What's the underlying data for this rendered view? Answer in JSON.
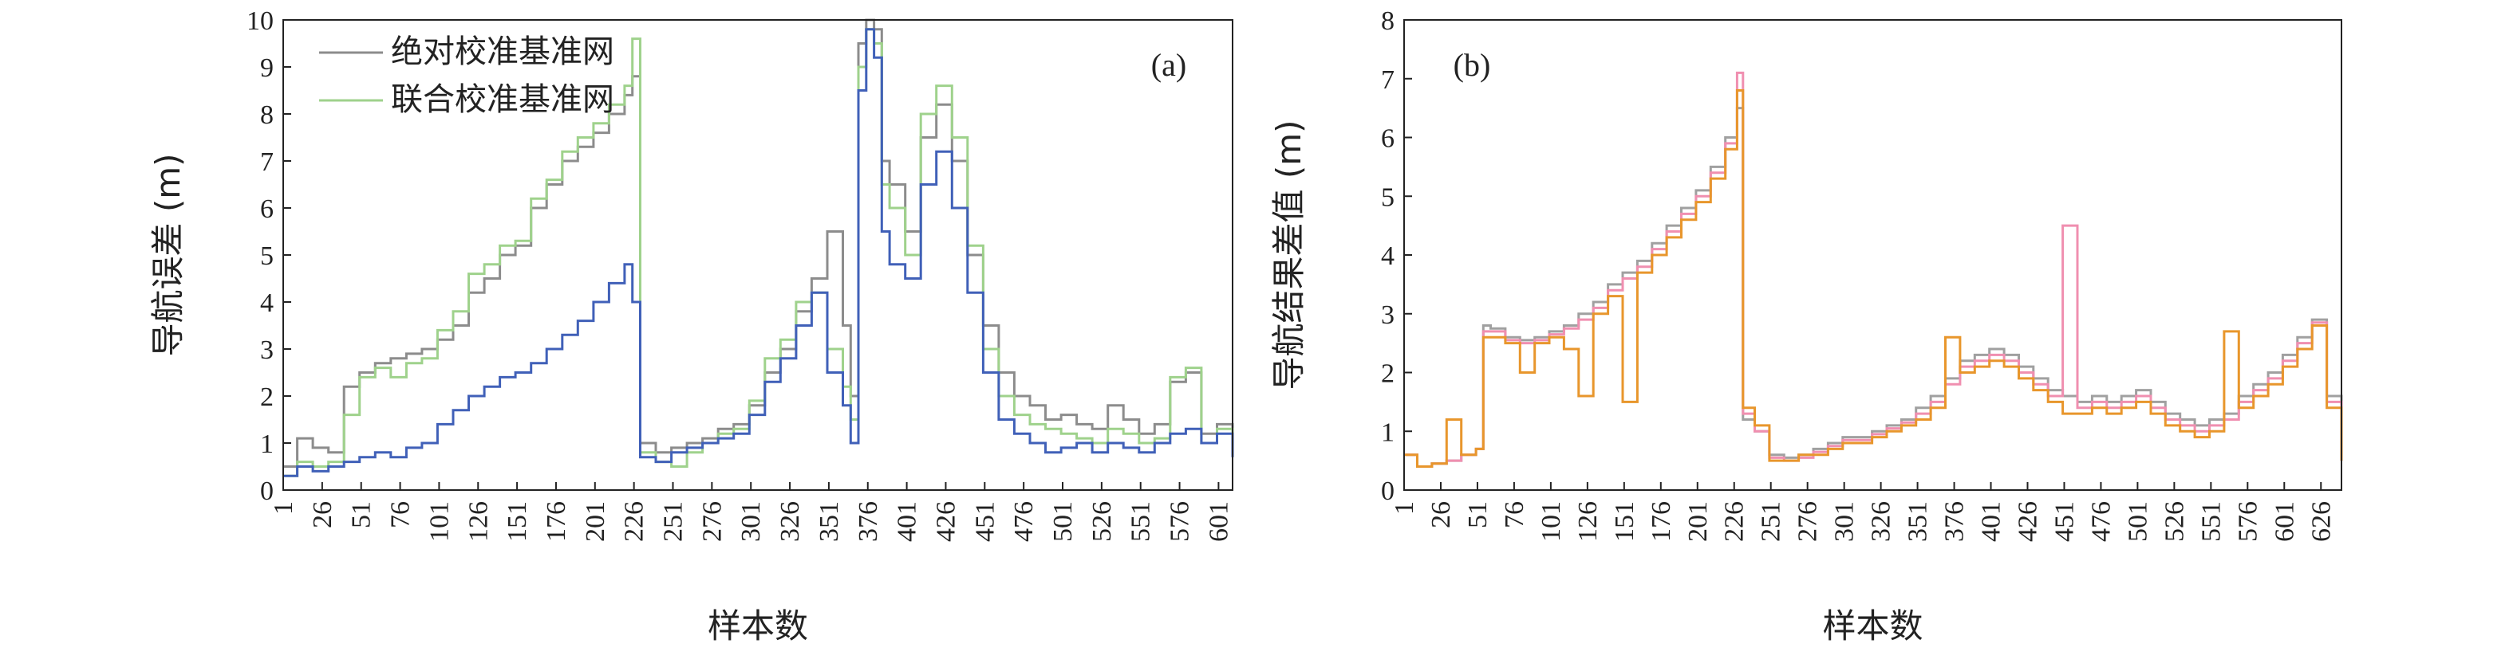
{
  "chart_data": [
    {
      "type": "line",
      "panel_label": "(a)",
      "xlabel": "样本数",
      "ylabel": "导航误差 (m)",
      "ylim": [
        0,
        10
      ],
      "xlim": [
        1,
        610
      ],
      "x_ticks": [
        1,
        26,
        51,
        76,
        101,
        126,
        151,
        176,
        201,
        226,
        251,
        276,
        301,
        326,
        351,
        376,
        401,
        426,
        451,
        476,
        501,
        526,
        551,
        576,
        601
      ],
      "y_ticks": [
        0,
        1,
        2,
        3,
        4,
        5,
        6,
        7,
        8,
        9,
        10
      ],
      "legend": [
        "绝对校准基准网",
        "联合校准基准网"
      ],
      "legend_position": "top-left",
      "series": [
        {
          "name": "绝对校准基准网",
          "color": "#8c8c8c",
          "x": [
            1,
            10,
            20,
            30,
            40,
            50,
            60,
            70,
            80,
            90,
            100,
            110,
            120,
            130,
            140,
            150,
            160,
            170,
            180,
            190,
            200,
            210,
            220,
            225,
            230,
            240,
            250,
            260,
            270,
            280,
            290,
            300,
            310,
            320,
            330,
            340,
            350,
            360,
            365,
            370,
            375,
            380,
            385,
            390,
            400,
            410,
            420,
            430,
            440,
            450,
            460,
            470,
            480,
            490,
            500,
            510,
            520,
            530,
            540,
            550,
            560,
            570,
            580,
            590,
            600,
            610
          ],
          "y": [
            0.5,
            1.1,
            0.9,
            0.8,
            2.2,
            2.5,
            2.7,
            2.8,
            2.9,
            3.0,
            3.2,
            3.5,
            4.2,
            4.5,
            5.0,
            5.2,
            6.0,
            6.5,
            7.0,
            7.3,
            7.6,
            8.0,
            8.4,
            8.8,
            1.0,
            0.8,
            0.9,
            1.0,
            1.1,
            1.3,
            1.4,
            1.8,
            2.5,
            3.0,
            3.8,
            4.5,
            5.5,
            3.5,
            2.0,
            9.5,
            10.0,
            9.8,
            7.0,
            6.5,
            5.5,
            7.5,
            8.2,
            7.0,
            5.0,
            3.5,
            2.5,
            2.0,
            1.8,
            1.5,
            1.6,
            1.4,
            1.3,
            1.8,
            1.5,
            1.2,
            1.4,
            2.3,
            2.5,
            1.2,
            1.4,
            1.0
          ]
        },
        {
          "name": "联合校准基准网",
          "color": "#9fd28c",
          "x": [
            1,
            10,
            20,
            30,
            40,
            50,
            60,
            70,
            80,
            90,
            100,
            110,
            120,
            130,
            140,
            150,
            160,
            170,
            180,
            190,
            200,
            210,
            220,
            225,
            230,
            240,
            250,
            260,
            270,
            280,
            290,
            300,
            310,
            320,
            330,
            340,
            350,
            360,
            365,
            370,
            375,
            380,
            385,
            390,
            400,
            410,
            420,
            430,
            440,
            450,
            460,
            470,
            480,
            490,
            500,
            510,
            520,
            530,
            540,
            550,
            560,
            570,
            580,
            590,
            600,
            610
          ],
          "y": [
            0.3,
            0.6,
            0.5,
            0.6,
            1.6,
            2.4,
            2.6,
            2.4,
            2.7,
            2.8,
            3.4,
            3.8,
            4.6,
            4.8,
            5.2,
            5.3,
            6.2,
            6.6,
            7.2,
            7.5,
            7.8,
            8.2,
            8.6,
            9.6,
            0.8,
            0.6,
            0.5,
            0.8,
            1.0,
            1.2,
            1.3,
            1.9,
            2.8,
            3.2,
            4.0,
            4.2,
            3.0,
            2.2,
            1.5,
            9.0,
            9.8,
            9.5,
            6.5,
            6.0,
            5.0,
            8.0,
            8.6,
            7.5,
            5.2,
            3.0,
            2.0,
            1.6,
            1.4,
            1.3,
            1.2,
            1.1,
            1.0,
            1.3,
            1.2,
            1.0,
            1.1,
            2.4,
            2.6,
            1.0,
            1.3,
            0.8
          ]
        },
        {
          "name": "",
          "color": "#4060b8",
          "x": [
            1,
            10,
            20,
            30,
            40,
            50,
            60,
            70,
            80,
            90,
            100,
            110,
            120,
            130,
            140,
            150,
            160,
            170,
            180,
            190,
            200,
            210,
            220,
            225,
            230,
            240,
            250,
            260,
            270,
            280,
            290,
            300,
            310,
            320,
            330,
            340,
            350,
            360,
            365,
            370,
            375,
            380,
            385,
            390,
            400,
            410,
            420,
            430,
            440,
            450,
            460,
            470,
            480,
            490,
            500,
            510,
            520,
            530,
            540,
            550,
            560,
            570,
            580,
            590,
            600,
            610
          ],
          "y": [
            0.3,
            0.5,
            0.4,
            0.5,
            0.6,
            0.7,
            0.8,
            0.7,
            0.9,
            1.0,
            1.4,
            1.7,
            2.0,
            2.2,
            2.4,
            2.5,
            2.7,
            3.0,
            3.3,
            3.6,
            4.0,
            4.4,
            4.8,
            4.0,
            0.7,
            0.6,
            0.8,
            0.9,
            1.0,
            1.1,
            1.2,
            1.6,
            2.3,
            2.8,
            3.5,
            4.2,
            2.5,
            1.8,
            1.0,
            8.5,
            9.8,
            9.2,
            5.5,
            4.8,
            4.5,
            6.5,
            7.2,
            6.0,
            4.2,
            2.5,
            1.5,
            1.2,
            1.0,
            0.8,
            0.9,
            1.0,
            0.8,
            1.0,
            0.9,
            0.8,
            1.0,
            1.2,
            1.3,
            1.0,
            1.2,
            0.7
          ]
        }
      ]
    },
    {
      "type": "line",
      "panel_label": "(b)",
      "xlabel": "样本数",
      "ylabel": "导航结果差值 (m)",
      "ylim": [
        0,
        8
      ],
      "xlim": [
        1,
        640
      ],
      "x_ticks": [
        1,
        26,
        51,
        76,
        101,
        126,
        151,
        176,
        201,
        226,
        251,
        276,
        301,
        326,
        351,
        376,
        401,
        426,
        451,
        476,
        501,
        526,
        551,
        576,
        601,
        626
      ],
      "y_ticks": [
        0,
        1,
        2,
        3,
        4,
        5,
        6,
        7,
        8
      ],
      "series": [
        {
          "name": "",
          "color": "#a0a0a0",
          "x": [
            1,
            10,
            20,
            30,
            40,
            50,
            55,
            60,
            70,
            80,
            90,
            100,
            110,
            120,
            130,
            140,
            150,
            160,
            170,
            180,
            190,
            200,
            210,
            220,
            228,
            232,
            240,
            250,
            260,
            270,
            280,
            290,
            300,
            310,
            320,
            330,
            340,
            350,
            360,
            370,
            380,
            390,
            400,
            410,
            420,
            430,
            440,
            450,
            460,
            470,
            480,
            490,
            500,
            510,
            520,
            530,
            540,
            550,
            560,
            570,
            580,
            590,
            600,
            610,
            620,
            630,
            640
          ],
          "y": [
            0.6,
            0.4,
            0.45,
            0.5,
            0.6,
            0.7,
            2.8,
            2.75,
            2.6,
            2.55,
            2.6,
            2.7,
            2.8,
            3.0,
            3.2,
            3.5,
            3.7,
            3.9,
            4.2,
            4.5,
            4.8,
            5.1,
            5.5,
            6.0,
            6.5,
            1.2,
            1.0,
            0.6,
            0.55,
            0.6,
            0.7,
            0.8,
            0.9,
            0.9,
            1.0,
            1.1,
            1.2,
            1.4,
            1.6,
            1.9,
            2.2,
            2.3,
            2.4,
            2.3,
            2.1,
            1.9,
            1.7,
            1.6,
            1.5,
            1.6,
            1.5,
            1.6,
            1.7,
            1.5,
            1.3,
            1.2,
            1.1,
            1.2,
            1.3,
            1.6,
            1.8,
            2.0,
            2.3,
            2.6,
            2.9,
            1.6,
            0.5
          ]
        },
        {
          "name": "",
          "color": "#f08fb0",
          "x": [
            1,
            10,
            20,
            30,
            40,
            50,
            55,
            60,
            70,
            80,
            90,
            100,
            110,
            120,
            130,
            140,
            150,
            160,
            170,
            180,
            190,
            200,
            210,
            220,
            228,
            232,
            240,
            250,
            260,
            270,
            280,
            290,
            300,
            310,
            320,
            330,
            340,
            350,
            360,
            370,
            380,
            390,
            400,
            410,
            420,
            430,
            440,
            450,
            460,
            470,
            480,
            490,
            500,
            510,
            520,
            530,
            540,
            550,
            560,
            570,
            580,
            590,
            600,
            610,
            620,
            630,
            640
          ],
          "y": [
            0.6,
            0.4,
            0.45,
            0.5,
            0.6,
            0.7,
            2.7,
            2.7,
            2.55,
            2.5,
            2.55,
            2.65,
            2.75,
            2.9,
            3.1,
            3.4,
            3.6,
            3.8,
            4.1,
            4.4,
            4.7,
            5.0,
            5.4,
            5.9,
            7.1,
            1.3,
            1.0,
            0.55,
            0.5,
            0.55,
            0.65,
            0.75,
            0.85,
            0.85,
            0.95,
            1.05,
            1.15,
            1.3,
            1.5,
            1.8,
            2.1,
            2.2,
            2.3,
            2.2,
            2.0,
            1.8,
            1.6,
            4.5,
            1.4,
            1.5,
            1.4,
            1.5,
            1.6,
            1.4,
            1.2,
            1.1,
            1.0,
            1.1,
            1.2,
            1.5,
            1.7,
            1.9,
            2.2,
            2.5,
            2.85,
            1.5,
            0.5
          ]
        },
        {
          "name": "",
          "color": "#e8962c",
          "x": [
            1,
            10,
            20,
            30,
            40,
            50,
            55,
            60,
            70,
            80,
            90,
            100,
            110,
            120,
            130,
            140,
            150,
            160,
            170,
            180,
            190,
            200,
            210,
            220,
            228,
            232,
            240,
            250,
            260,
            270,
            280,
            290,
            300,
            310,
            320,
            330,
            340,
            350,
            360,
            370,
            380,
            390,
            400,
            410,
            420,
            430,
            440,
            450,
            460,
            470,
            480,
            490,
            500,
            510,
            520,
            530,
            540,
            550,
            560,
            570,
            580,
            590,
            600,
            610,
            620,
            630,
            640
          ],
          "y": [
            0.6,
            0.4,
            0.45,
            1.2,
            0.6,
            0.7,
            2.6,
            2.6,
            2.5,
            2.0,
            2.5,
            2.6,
            2.4,
            1.6,
            3.0,
            3.3,
            1.5,
            3.7,
            4.0,
            4.3,
            4.6,
            4.9,
            5.3,
            5.8,
            6.8,
            1.4,
            1.1,
            0.5,
            0.5,
            0.6,
            0.6,
            0.7,
            0.8,
            0.8,
            0.9,
            1.0,
            1.1,
            1.2,
            1.4,
            2.6,
            2.0,
            2.1,
            2.2,
            2.1,
            1.9,
            1.7,
            1.5,
            1.3,
            1.3,
            1.4,
            1.3,
            1.4,
            1.5,
            1.3,
            1.1,
            1.0,
            0.9,
            1.0,
            2.7,
            1.4,
            1.6,
            1.8,
            2.1,
            2.4,
            2.8,
            1.4,
            0.5
          ]
        }
      ]
    }
  ]
}
